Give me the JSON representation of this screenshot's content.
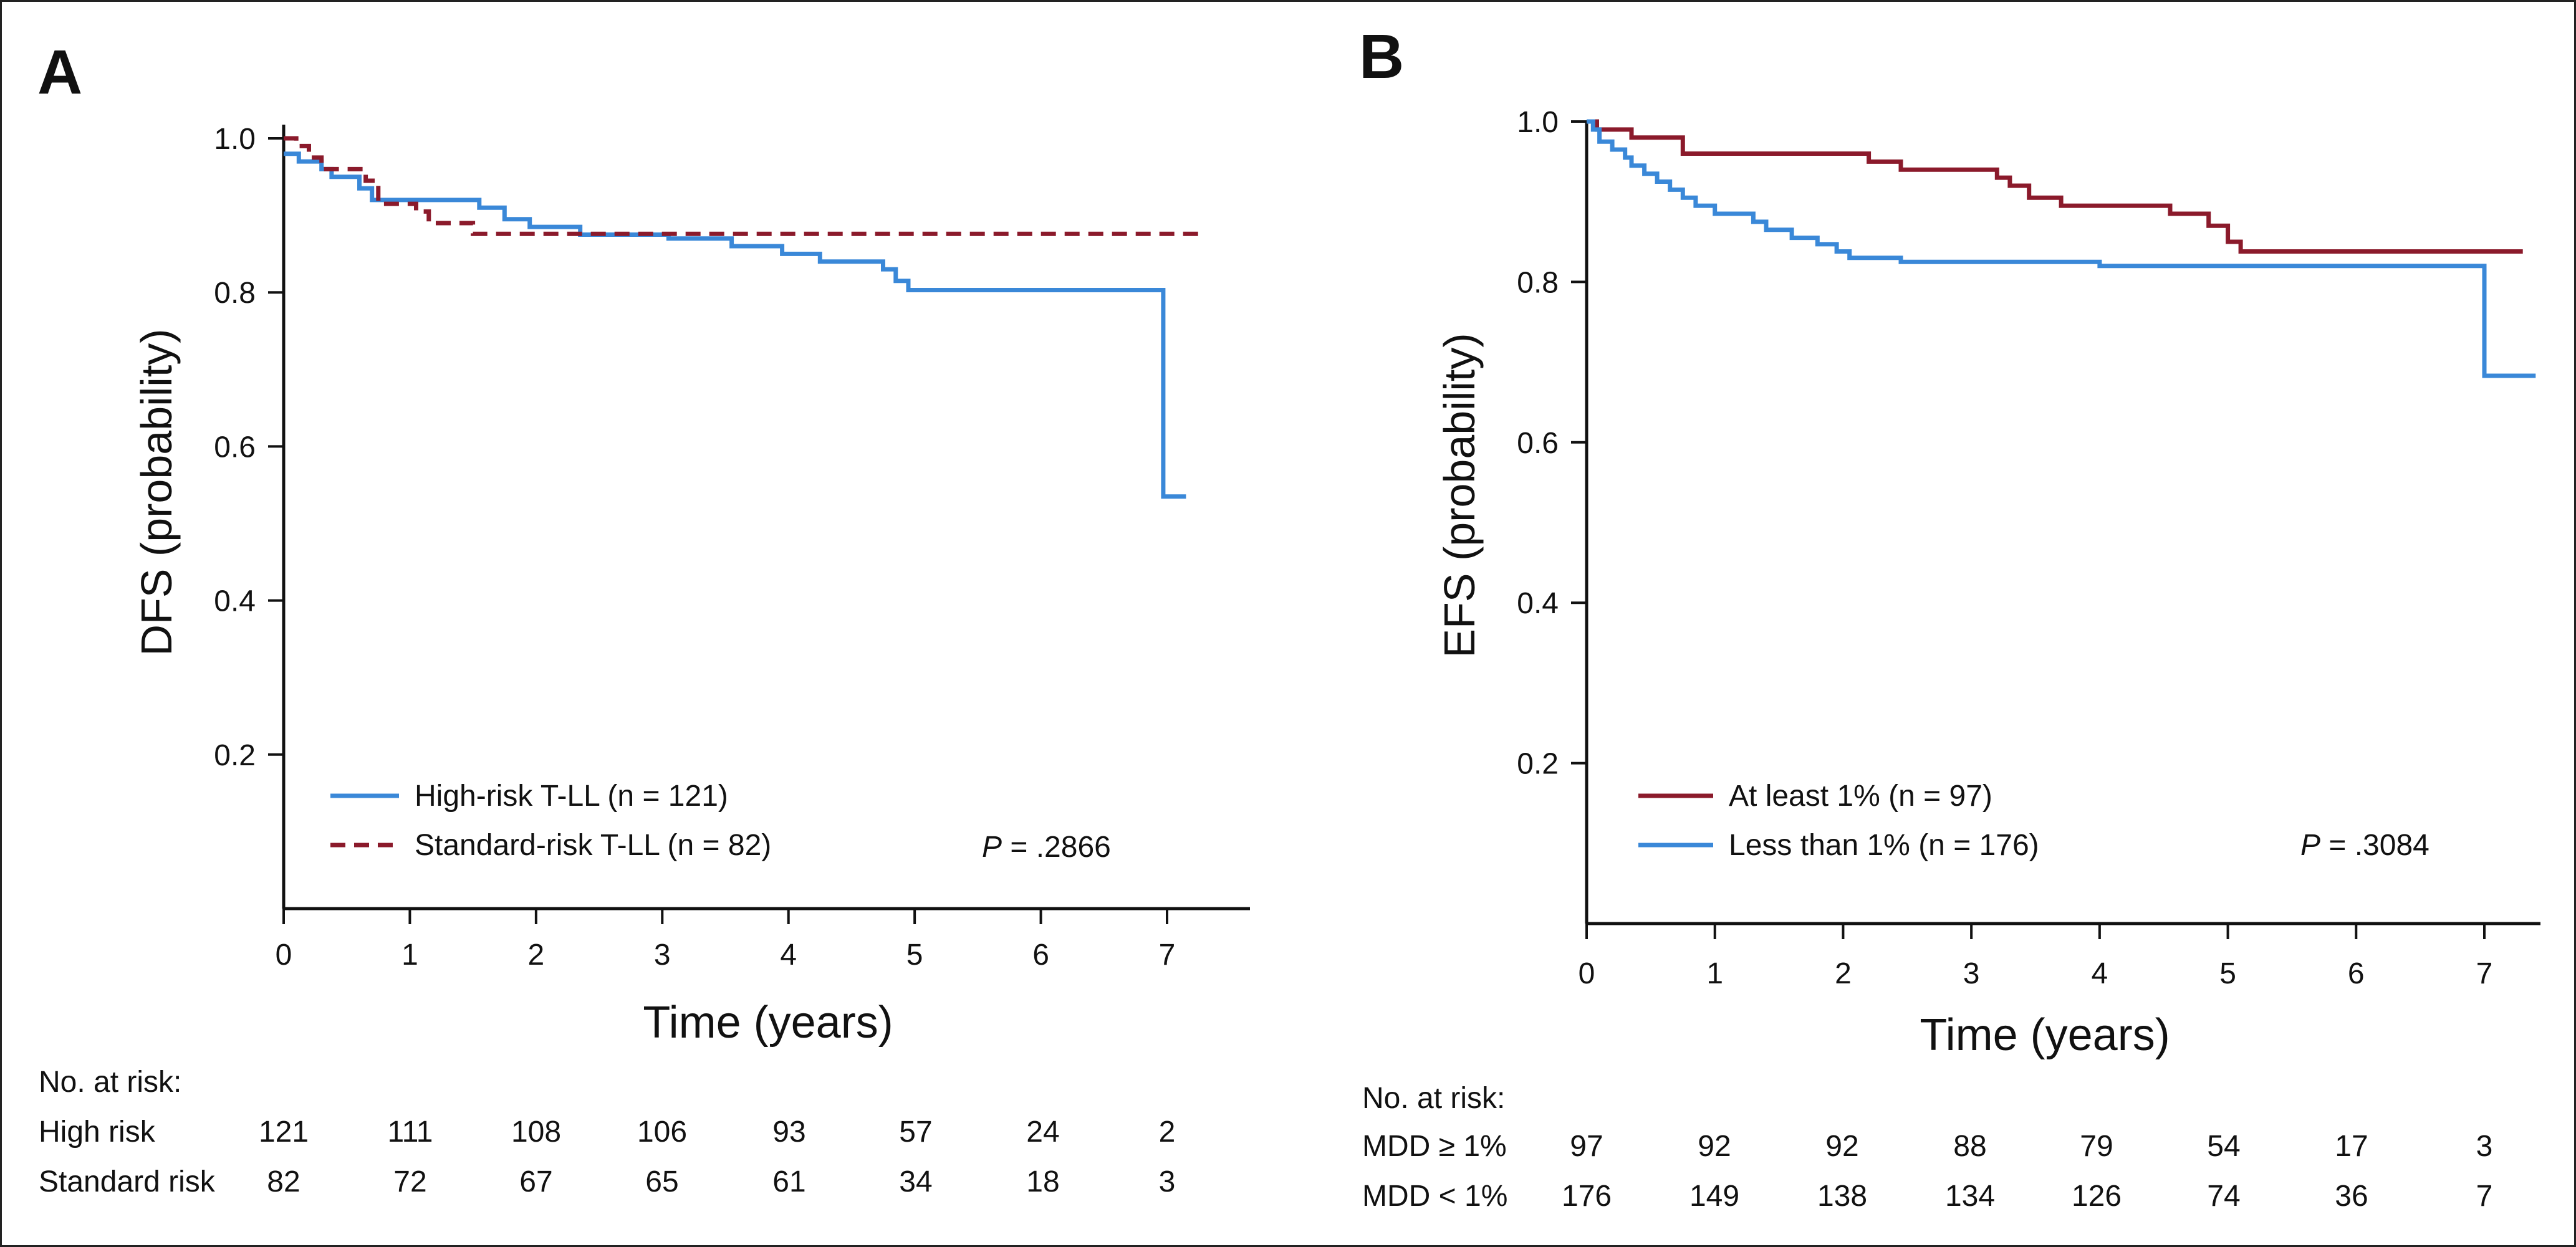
{
  "chart_data": [
    {
      "panel": "A",
      "type": "line",
      "title": "",
      "xlabel": "Time (years)",
      "ylabel": "DFS (probability)",
      "xlim": [
        0,
        7.55
      ],
      "ylim": [
        0,
        1.02
      ],
      "x_ticks": [
        0,
        1,
        2,
        3,
        4,
        5,
        6,
        7
      ],
      "y_ticks": [
        0.2,
        0.4,
        0.6,
        0.8,
        1.0
      ],
      "y_tick_labels": [
        "0.2",
        "0.4",
        "0.6",
        "0.8",
        "1.0"
      ],
      "grid": false,
      "legend_position": "bottom-left",
      "p_value_label": "P",
      "p_value_text": " = .2866",
      "series": [
        {
          "name": "High-risk T-LL (n = 121)",
          "color": "#3a88d8",
          "style": "solid",
          "points": [
            [
              0,
              0.98
            ],
            [
              0.12,
              0.98
            ],
            [
              0.12,
              0.97
            ],
            [
              0.3,
              0.97
            ],
            [
              0.3,
              0.96
            ],
            [
              0.38,
              0.96
            ],
            [
              0.38,
              0.95
            ],
            [
              0.6,
              0.95
            ],
            [
              0.6,
              0.935
            ],
            [
              0.7,
              0.935
            ],
            [
              0.7,
              0.92
            ],
            [
              1.55,
              0.92
            ],
            [
              1.55,
              0.91
            ],
            [
              1.75,
              0.91
            ],
            [
              1.75,
              0.895
            ],
            [
              1.95,
              0.895
            ],
            [
              1.95,
              0.885
            ],
            [
              2.35,
              0.885
            ],
            [
              2.35,
              0.875
            ],
            [
              3.05,
              0.875
            ],
            [
              3.05,
              0.87
            ],
            [
              3.55,
              0.87
            ],
            [
              3.55,
              0.86
            ],
            [
              3.95,
              0.86
            ],
            [
              3.95,
              0.85
            ],
            [
              4.25,
              0.85
            ],
            [
              4.25,
              0.84
            ],
            [
              4.75,
              0.84
            ],
            [
              4.75,
              0.83
            ],
            [
              4.85,
              0.83
            ],
            [
              4.85,
              0.815
            ],
            [
              4.95,
              0.815
            ],
            [
              4.95,
              0.803
            ],
            [
              6.97,
              0.803
            ],
            [
              6.97,
              0.535
            ],
            [
              7.15,
              0.535
            ]
          ]
        },
        {
          "name": "Standard-risk T-LL (n = 82)",
          "color": "#8b1a2b",
          "style": "dashed",
          "points": [
            [
              0,
              1.0
            ],
            [
              0.1,
              1.0
            ],
            [
              0.1,
              0.99
            ],
            [
              0.2,
              0.99
            ],
            [
              0.2,
              0.975
            ],
            [
              0.3,
              0.975
            ],
            [
              0.3,
              0.96
            ],
            [
              0.65,
              0.96
            ],
            [
              0.65,
              0.945
            ],
            [
              0.75,
              0.945
            ],
            [
              0.75,
              0.915
            ],
            [
              1.05,
              0.915
            ],
            [
              1.05,
              0.905
            ],
            [
              1.15,
              0.905
            ],
            [
              1.15,
              0.89
            ],
            [
              1.5,
              0.89
            ],
            [
              1.5,
              0.876
            ],
            [
              7.3,
              0.876
            ]
          ]
        }
      ],
      "risk_table": {
        "header": "No. at risk:",
        "rows": [
          {
            "label": "High risk",
            "values": [
              "121",
              "111",
              "108",
              "106",
              "93",
              "57",
              "24",
              "2"
            ]
          },
          {
            "label": "Standard risk",
            "values": [
              "82",
              "72",
              "67",
              "65",
              "61",
              "34",
              "18",
              "3"
            ]
          }
        ]
      }
    },
    {
      "panel": "B",
      "type": "line",
      "title": "",
      "xlabel": "Time (years)",
      "ylabel": "EFS (probability)",
      "xlim": [
        0,
        7.4
      ],
      "ylim": [
        0,
        1.02
      ],
      "x_ticks": [
        0,
        1,
        2,
        3,
        4,
        5,
        6,
        7
      ],
      "y_ticks": [
        0.2,
        0.4,
        0.6,
        0.8,
        1.0
      ],
      "y_tick_labels": [
        "0.2",
        "0.4",
        "0.6",
        "0.8",
        "1.0"
      ],
      "grid": false,
      "legend_position": "bottom-left",
      "p_value_label": "P",
      "p_value_text": " = .3084",
      "series": [
        {
          "name": "At least 1% (n = 97)",
          "color": "#8b1a2b",
          "style": "solid",
          "points": [
            [
              0,
              1.0
            ],
            [
              0.08,
              1.0
            ],
            [
              0.08,
              0.99
            ],
            [
              0.35,
              0.99
            ],
            [
              0.35,
              0.98
            ],
            [
              0.75,
              0.98
            ],
            [
              0.75,
              0.96
            ],
            [
              2.2,
              0.96
            ],
            [
              2.2,
              0.95
            ],
            [
              2.45,
              0.95
            ],
            [
              2.45,
              0.94
            ],
            [
              3.2,
              0.94
            ],
            [
              3.2,
              0.93
            ],
            [
              3.3,
              0.93
            ],
            [
              3.3,
              0.92
            ],
            [
              3.45,
              0.92
            ],
            [
              3.45,
              0.905
            ],
            [
              3.7,
              0.905
            ],
            [
              3.7,
              0.895
            ],
            [
              4.55,
              0.895
            ],
            [
              4.55,
              0.885
            ],
            [
              4.85,
              0.885
            ],
            [
              4.85,
              0.87
            ],
            [
              5.0,
              0.87
            ],
            [
              5.0,
              0.85
            ],
            [
              5.1,
              0.85
            ],
            [
              5.1,
              0.838
            ],
            [
              7.3,
              0.838
            ]
          ]
        },
        {
          "name": "Less than 1% (n = 176)",
          "color": "#3a88d8",
          "style": "solid",
          "points": [
            [
              0,
              1.0
            ],
            [
              0.05,
              1.0
            ],
            [
              0.05,
              0.99
            ],
            [
              0.1,
              0.99
            ],
            [
              0.1,
              0.975
            ],
            [
              0.2,
              0.975
            ],
            [
              0.2,
              0.965
            ],
            [
              0.3,
              0.965
            ],
            [
              0.3,
              0.955
            ],
            [
              0.35,
              0.955
            ],
            [
              0.35,
              0.945
            ],
            [
              0.45,
              0.945
            ],
            [
              0.45,
              0.935
            ],
            [
              0.55,
              0.935
            ],
            [
              0.55,
              0.925
            ],
            [
              0.65,
              0.925
            ],
            [
              0.65,
              0.915
            ],
            [
              0.75,
              0.915
            ],
            [
              0.75,
              0.905
            ],
            [
              0.85,
              0.905
            ],
            [
              0.85,
              0.895
            ],
            [
              1.0,
              0.895
            ],
            [
              1.0,
              0.885
            ],
            [
              1.3,
              0.885
            ],
            [
              1.3,
              0.875
            ],
            [
              1.4,
              0.875
            ],
            [
              1.4,
              0.865
            ],
            [
              1.6,
              0.865
            ],
            [
              1.6,
              0.855
            ],
            [
              1.8,
              0.855
            ],
            [
              1.8,
              0.847
            ],
            [
              1.95,
              0.847
            ],
            [
              1.95,
              0.838
            ],
            [
              2.05,
              0.838
            ],
            [
              2.05,
              0.83
            ],
            [
              2.45,
              0.83
            ],
            [
              2.45,
              0.825
            ],
            [
              4.0,
              0.825
            ],
            [
              4.0,
              0.82
            ],
            [
              7.0,
              0.82
            ],
            [
              7.0,
              0.683
            ],
            [
              7.4,
              0.683
            ]
          ]
        }
      ],
      "risk_table": {
        "header": "No. at risk:",
        "rows": [
          {
            "label": "MDD ≥ 1%",
            "values": [
              "97",
              "92",
              "92",
              "88",
              "79",
              "54",
              "17",
              "3"
            ]
          },
          {
            "label": "MDD  < 1%",
            "values": [
              "176",
              "149",
              "138",
              "134",
              "126",
              "74",
              "36",
              "7"
            ]
          }
        ]
      }
    }
  ]
}
